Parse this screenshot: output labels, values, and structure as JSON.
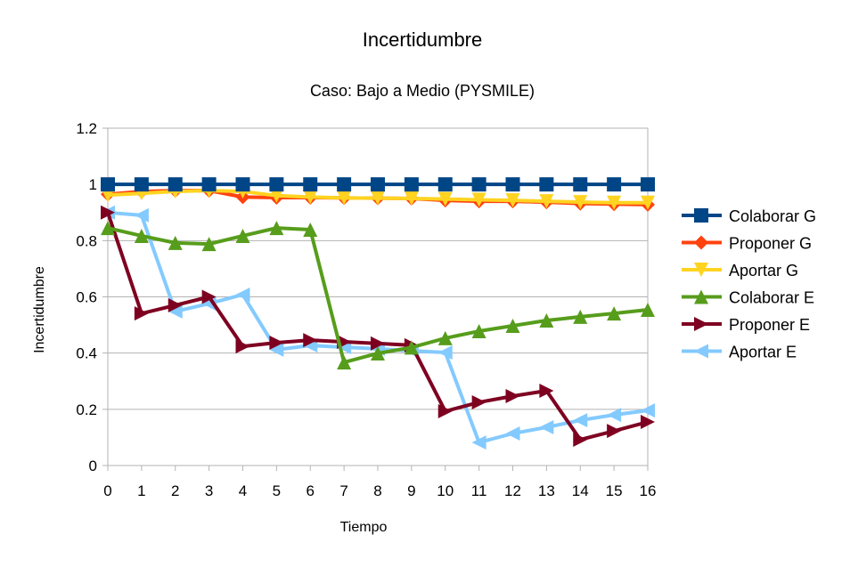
{
  "chart_data": {
    "type": "line",
    "title": "Incertidumbre",
    "subtitle": "Caso: Bajo a Medio  (PYSMILE)",
    "xlabel": "Tiempo",
    "ylabel": "Incertidumbre",
    "xlim": [
      0,
      16
    ],
    "ylim": [
      0,
      1.2
    ],
    "yticks": [
      "0",
      "0.2",
      "0.4",
      "0.6",
      "0.8",
      "1",
      "1.2"
    ],
    "x": [
      0,
      1,
      2,
      3,
      4,
      5,
      6,
      7,
      8,
      9,
      10,
      11,
      12,
      13,
      14,
      15,
      16
    ],
    "grid": "horizontal",
    "legend": "right",
    "series": [
      {
        "name": "Colaborar G",
        "color": "#004586",
        "marker": "square",
        "values": [
          1,
          1,
          1,
          1,
          1,
          1,
          1,
          1,
          1,
          1,
          1,
          1,
          1,
          1,
          1,
          1,
          1
        ]
      },
      {
        "name": "Proponer G",
        "color": "#ff420e",
        "marker": "diamond",
        "values": [
          0.965,
          0.975,
          0.978,
          0.978,
          0.955,
          0.953,
          0.953,
          0.952,
          0.951,
          0.95,
          0.943,
          0.94,
          0.94,
          0.937,
          0.932,
          0.93,
          0.928
        ]
      },
      {
        "name": "Aportar G",
        "color": "#ffd320",
        "marker": "triangle-down",
        "values": [
          0.962,
          0.968,
          0.975,
          0.978,
          0.975,
          0.96,
          0.955,
          0.952,
          0.951,
          0.95,
          0.948,
          0.945,
          0.943,
          0.94,
          0.937,
          0.935,
          0.935
        ]
      },
      {
        "name": "Colaborar E",
        "color": "#579d1c",
        "marker": "triangle-up",
        "values": [
          0.845,
          0.817,
          0.792,
          0.788,
          0.817,
          0.845,
          0.839,
          0.367,
          0.399,
          0.42,
          0.453,
          0.478,
          0.497,
          0.516,
          0.529,
          0.541,
          0.554
        ]
      },
      {
        "name": "Proponer E",
        "color": "#7e0021",
        "marker": "triangle-right",
        "values": [
          0.9,
          0.541,
          0.57,
          0.6,
          0.424,
          0.437,
          0.446,
          0.44,
          0.434,
          0.428,
          0.193,
          0.225,
          0.247,
          0.266,
          0.092,
          0.123,
          0.155
        ]
      },
      {
        "name": "Aportar E",
        "color": "#83caff",
        "marker": "triangle-left",
        "values": [
          0.9,
          0.89,
          0.548,
          0.576,
          0.608,
          0.412,
          0.427,
          0.421,
          0.415,
          0.408,
          0.402,
          0.082,
          0.114,
          0.136,
          0.161,
          0.18,
          0.196
        ]
      }
    ]
  }
}
